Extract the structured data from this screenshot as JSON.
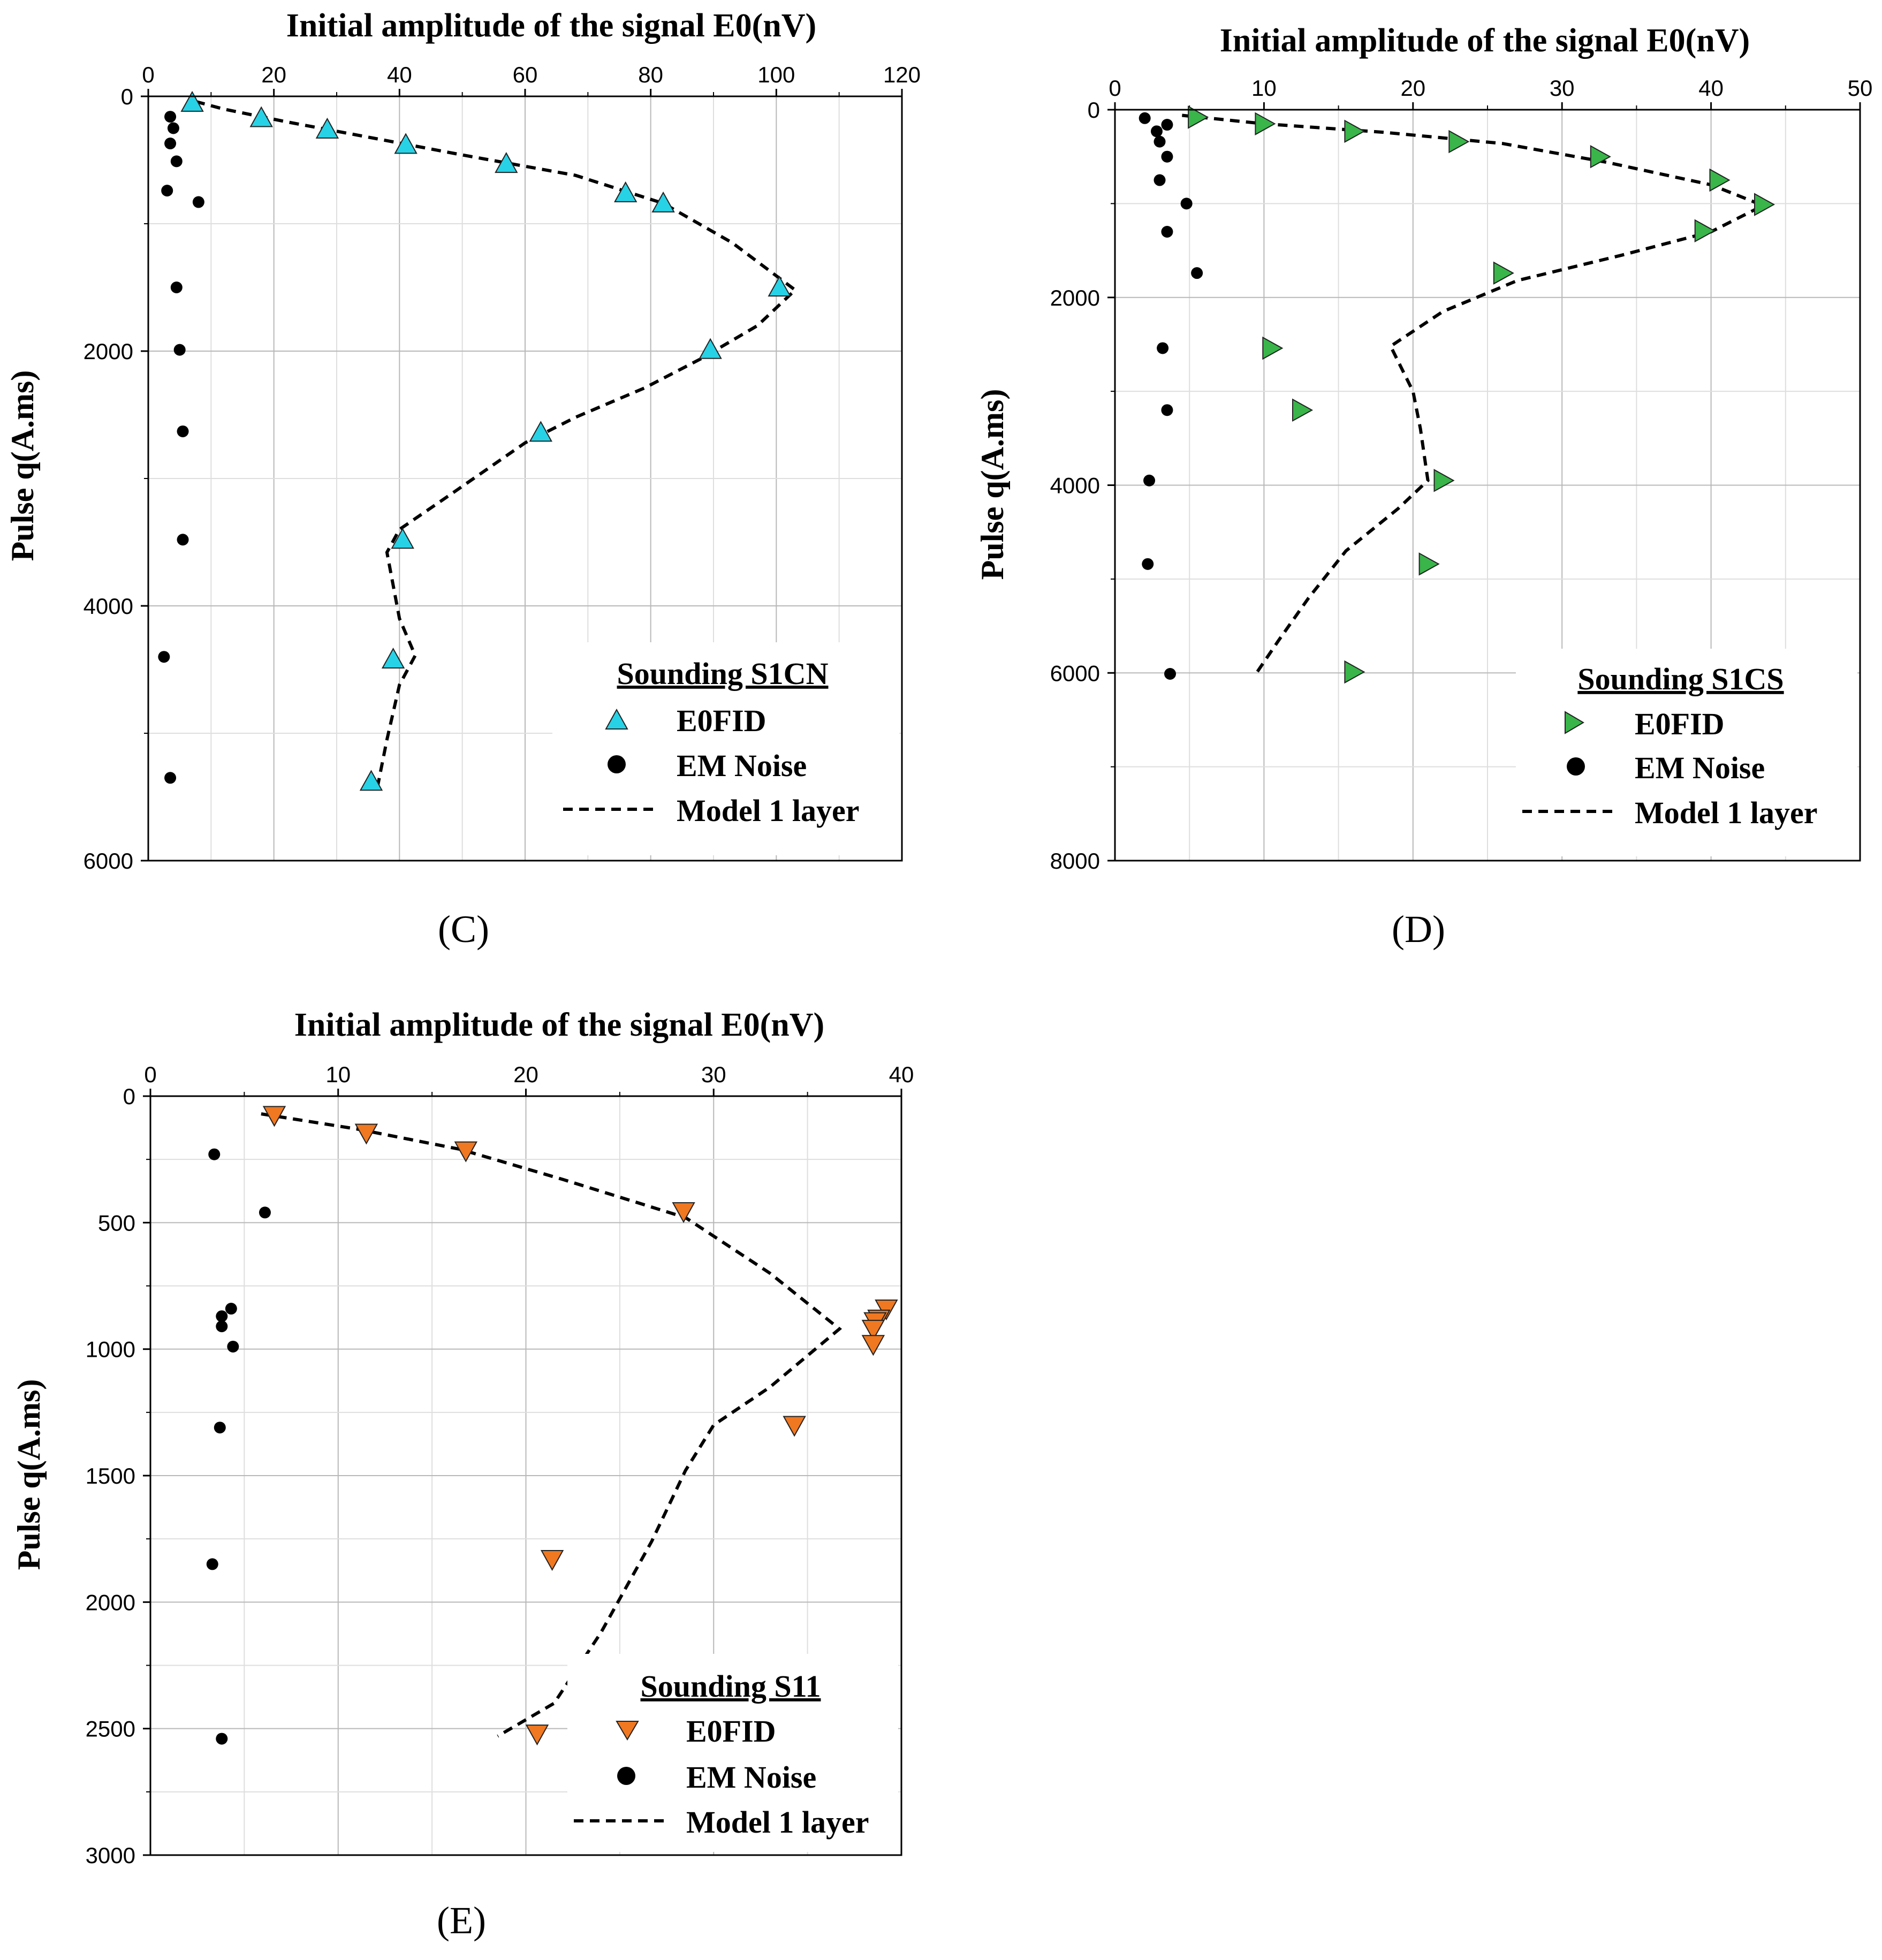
{
  "chart_data": [
    {
      "type": "scatter",
      "panel_label": "(C)",
      "title": "Initial amplitude of the signal E0(nV)",
      "xlabel": "Initial amplitude of the signal E0(nV)",
      "ylabel": "Pulse q(A.ms)",
      "xlim": [
        0,
        120
      ],
      "ylim": [
        0,
        6000
      ],
      "y_inverted": true,
      "x_axis_position": "top",
      "x_ticks": [
        0,
        20,
        40,
        60,
        80,
        100,
        120
      ],
      "y_ticks": [
        0,
        2000,
        4000,
        6000
      ],
      "marker_color": "#28d2e6",
      "legend": {
        "title": "Sounding S1CN",
        "items": [
          "E0FID",
          "EM Noise",
          "Model 1 layer"
        ],
        "position": "bottom-right"
      },
      "series": [
        {
          "name": "E0FID",
          "marker": "triangle-up",
          "points": [
            [
              7,
              50
            ],
            [
              18,
              170
            ],
            [
              28.5,
              260
            ],
            [
              41,
              380
            ],
            [
              57,
              530
            ],
            [
              76,
              760
            ],
            [
              82,
              840
            ],
            [
              100.5,
              1500
            ],
            [
              89.5,
              1990
            ],
            [
              62.5,
              2640
            ],
            [
              40.5,
              3480
            ],
            [
              39,
              4420
            ],
            [
              35.5,
              5380
            ]
          ]
        },
        {
          "name": "EM Noise",
          "marker": "circle",
          "points": [
            [
              3.5,
              160
            ],
            [
              4,
              250
            ],
            [
              3.5,
              370
            ],
            [
              4.5,
              510
            ],
            [
              3,
              740
            ],
            [
              8,
              830
            ],
            [
              4.5,
              1500
            ],
            [
              5,
              1990
            ],
            [
              5.5,
              2630
            ],
            [
              5.5,
              3480
            ],
            [
              2.5,
              4400
            ],
            [
              3.5,
              5350
            ]
          ]
        },
        {
          "name": "Model 1 layer",
          "style": "dashed",
          "points": [
            [
              7.5,
              40
            ],
            [
              12,
              100
            ],
            [
              22,
              200
            ],
            [
              35,
              320
            ],
            [
              50,
              460
            ],
            [
              68,
              620
            ],
            [
              82,
              840
            ],
            [
              93,
              1150
            ],
            [
              103,
              1520
            ],
            [
              97,
              1800
            ],
            [
              88,
              2060
            ],
            [
              79,
              2290
            ],
            [
              68,
              2520
            ],
            [
              60,
              2720
            ],
            [
              48,
              3130
            ],
            [
              40,
              3400
            ],
            [
              38,
              3580
            ],
            [
              40,
              4100
            ],
            [
              42.5,
              4390
            ],
            [
              40,
              4620
            ],
            [
              38,
              5050
            ],
            [
              36.5,
              5420
            ]
          ]
        }
      ]
    },
    {
      "type": "scatter",
      "panel_label": "(D)",
      "title": "Initial amplitude of the signal E0(nV)",
      "xlabel": "Initial amplitude of the signal E0(nV)",
      "ylabel": "Pulse q(A.ms)",
      "xlim": [
        0,
        50
      ],
      "ylim": [
        0,
        8000
      ],
      "y_inverted": true,
      "x_axis_position": "top",
      "x_ticks": [
        0,
        10,
        20,
        30,
        40,
        50
      ],
      "y_ticks": [
        0,
        2000,
        4000,
        6000,
        8000
      ],
      "marker_color": "#39b54a",
      "legend": {
        "title": "Sounding S1CS",
        "items": [
          "E0FID",
          "EM Noise",
          "Model 1 layer"
        ],
        "position": "bottom-right"
      },
      "series": [
        {
          "name": "E0FID",
          "marker": "triangle-right",
          "points": [
            [
              5.5,
              80
            ],
            [
              10,
              150
            ],
            [
              16,
              230
            ],
            [
              23,
              340
            ],
            [
              32.5,
              500
            ],
            [
              40.5,
              750
            ],
            [
              43.5,
              1010
            ],
            [
              39.5,
              1290
            ],
            [
              26,
              1740
            ],
            [
              10.5,
              2540
            ],
            [
              12.5,
              3200
            ],
            [
              22,
              3950
            ],
            [
              21,
              4840
            ],
            [
              16,
              5990
            ]
          ]
        },
        {
          "name": "EM Noise",
          "marker": "circle",
          "points": [
            [
              2,
              90
            ],
            [
              3.5,
              160
            ],
            [
              2.8,
              230
            ],
            [
              3,
              340
            ],
            [
              3.5,
              500
            ],
            [
              3,
              750
            ],
            [
              4.8,
              1000
            ],
            [
              3.5,
              1300
            ],
            [
              5.5,
              1740
            ],
            [
              3.2,
              2540
            ],
            [
              3.5,
              3200
            ],
            [
              2.3,
              3950
            ],
            [
              2.2,
              4840
            ],
            [
              3.7,
              6010
            ]
          ]
        },
        {
          "name": "Model 1 layer",
          "style": "dashed",
          "points": [
            [
              4.5,
              60
            ],
            [
              10,
              150
            ],
            [
              18,
              240
            ],
            [
              26,
              360
            ],
            [
              33,
              560
            ],
            [
              40,
              800
            ],
            [
              43.5,
              1020
            ],
            [
              40,
              1300
            ],
            [
              34,
              1550
            ],
            [
              27,
              1820
            ],
            [
              22,
              2150
            ],
            [
              18.5,
              2520
            ],
            [
              20,
              3000
            ],
            [
              20.5,
              3400
            ],
            [
              21,
              3950
            ],
            [
              19,
              4250
            ],
            [
              15.5,
              4700
            ],
            [
              13,
              5200
            ],
            [
              11,
              5650
            ],
            [
              9.5,
              6000
            ]
          ]
        }
      ]
    },
    {
      "type": "scatter",
      "panel_label": "(E)",
      "title": "Initial amplitude of the signal E0(nV)",
      "xlabel": "Initial amplitude of the signal E0(nV)",
      "ylabel": "Pulse q(A.ms)",
      "xlim": [
        0,
        40
      ],
      "ylim": [
        0,
        3000
      ],
      "y_inverted": true,
      "x_axis_position": "top",
      "x_ticks": [
        0,
        10,
        20,
        30,
        40
      ],
      "y_ticks": [
        0,
        500,
        1000,
        1500,
        2000,
        2500,
        3000
      ],
      "marker_color": "#f07820",
      "legend": {
        "title": "Sounding S11",
        "items": [
          "E0FID",
          "EM Noise",
          "Model 1 layer"
        ],
        "position": "bottom-right"
      },
      "series": [
        {
          "name": "E0FID",
          "marker": "triangle-down",
          "points": [
            [
              6.6,
              75
            ],
            [
              11.5,
              145
            ],
            [
              16.8,
              215
            ],
            [
              28.4,
              455
            ],
            [
              39.2,
              840
            ],
            [
              38.8,
              880
            ],
            [
              38.6,
              890
            ],
            [
              38.5,
              920
            ],
            [
              38.5,
              980
            ],
            [
              34.3,
              1300
            ],
            [
              21.4,
              1830
            ],
            [
              20.6,
              2520
            ]
          ]
        },
        {
          "name": "EM Noise",
          "marker": "circle",
          "points": [
            [
              3.4,
              230
            ],
            [
              6.1,
              460
            ],
            [
              4.3,
              840
            ],
            [
              3.8,
              870
            ],
            [
              3.8,
              910
            ],
            [
              4.4,
              990
            ],
            [
              3.7,
              1310
            ],
            [
              3.3,
              1850
            ],
            [
              3.8,
              2540
            ]
          ]
        },
        {
          "name": "Model 1 layer",
          "style": "dashed",
          "points": [
            [
              5.9,
              70
            ],
            [
              11,
              130
            ],
            [
              16.5,
              210
            ],
            [
              22,
              330
            ],
            [
              28.5,
              480
            ],
            [
              33,
              700
            ],
            [
              36.7,
              920
            ],
            [
              33,
              1150
            ],
            [
              30,
              1300
            ],
            [
              28.5,
              1480
            ],
            [
              26.7,
              1760
            ],
            [
              24,
              2120
            ],
            [
              21.5,
              2400
            ],
            [
              18.5,
              2530
            ]
          ]
        }
      ]
    }
  ]
}
